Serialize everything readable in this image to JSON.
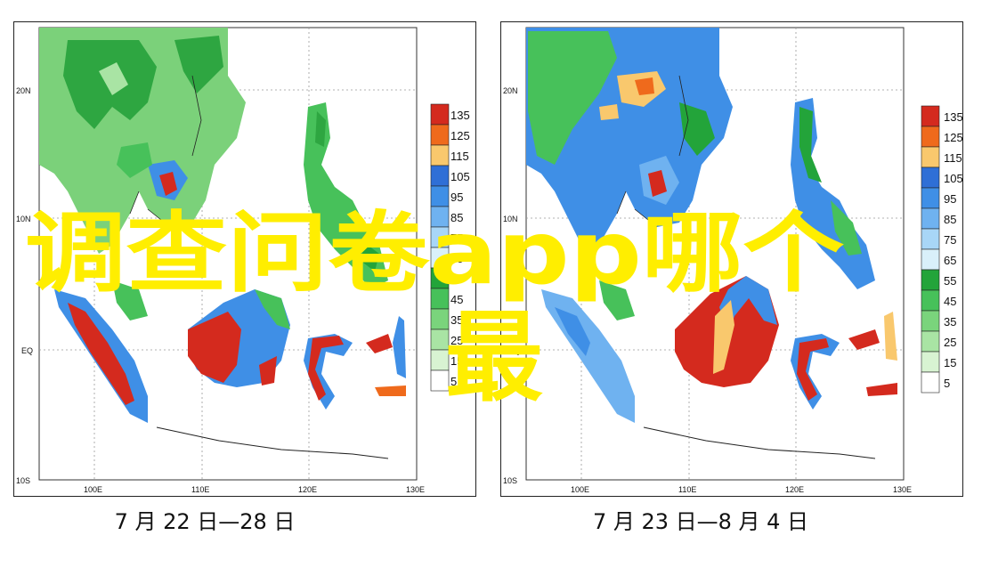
{
  "panels": [
    {
      "caption": "7 月 22 日—28 日",
      "lat_ticks": [
        "20N",
        "10N",
        "EQ",
        "10S"
      ],
      "lon_ticks": [
        "100E",
        "110E",
        "120E",
        "130E"
      ]
    },
    {
      "caption": "7 月 23 日—8 月 4 日",
      "lat_ticks": [
        "20N",
        "10N",
        "EQ",
        "10S"
      ],
      "lon_ticks": [
        "100E",
        "110E",
        "120E",
        "130E"
      ]
    }
  ],
  "colorbar": {
    "labels": [
      "135",
      "125",
      "115",
      "105",
      "95",
      "85",
      "75",
      "65",
      "55",
      "45",
      "35",
      "25",
      "15",
      "5"
    ],
    "colors": [
      "#d42a1e",
      "#ef6a1c",
      "#f9c86d",
      "#2f6fd6",
      "#3f8fe6",
      "#6fb2f0",
      "#a8d6f7",
      "#d9f0fa",
      "#23a43a",
      "#47c15a",
      "#7ad47c",
      "#a9e4a4",
      "#d8f3d2",
      "#ffffff"
    ]
  },
  "watermark": {
    "line1": "调查问卷app哪个",
    "line2": "最"
  },
  "colors": {
    "land_green": "#7bd17a",
    "deep_green": "#2ea641",
    "blue": "#3f8fe6",
    "red": "#d42a1e",
    "orange": "#ef6a1c",
    "watermark": "#ffee00"
  }
}
